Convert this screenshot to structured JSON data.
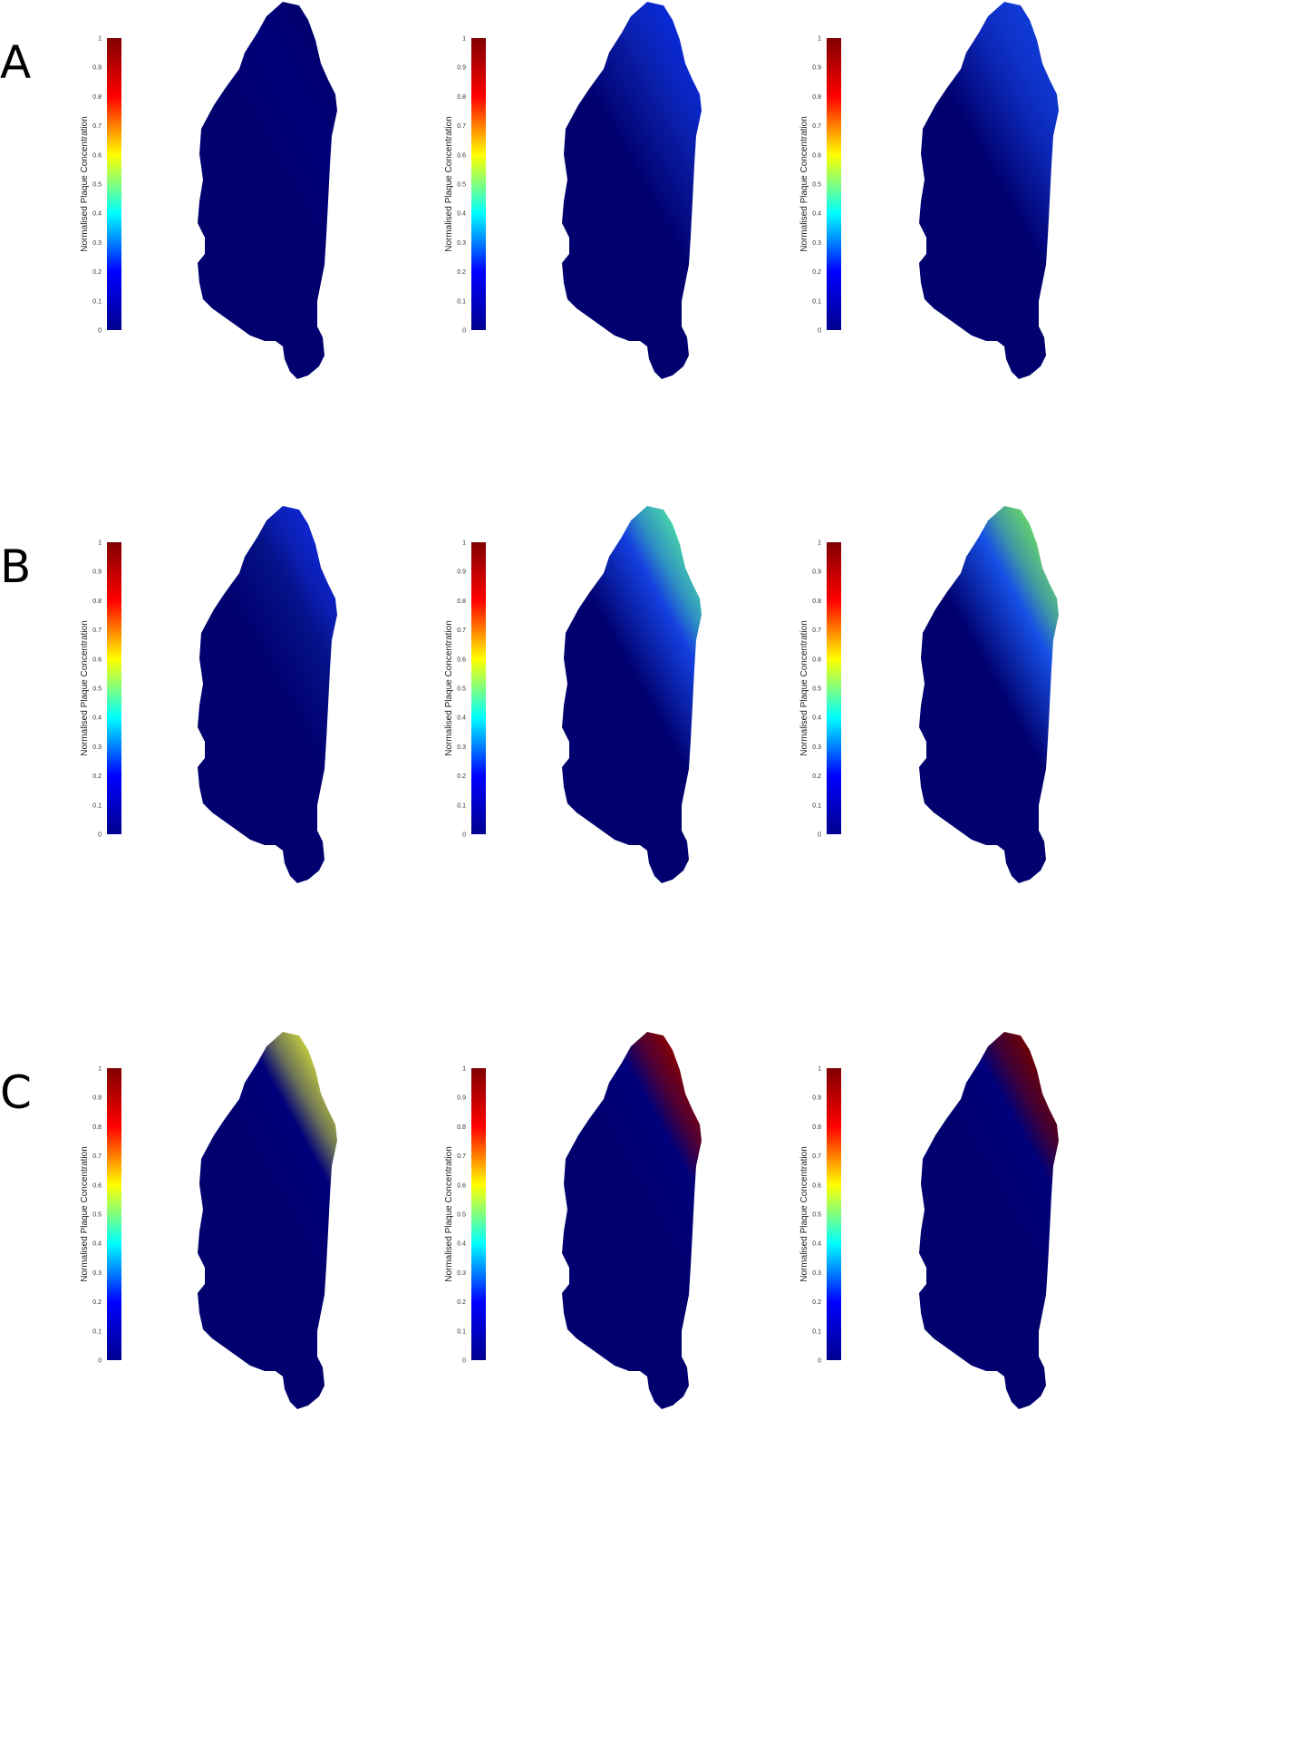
{
  "figure": {
    "rows": [
      {
        "label": "A",
        "panels": [
          {
            "tip": "#00006e",
            "upper": "#00007a"
          },
          {
            "tip": "#0a2ad8",
            "upper": "#0a1ea8"
          },
          {
            "tip": "#103cd8",
            "upper": "#0c28b8"
          }
        ]
      },
      {
        "label": "B",
        "panels": [
          {
            "tip": "#0f28d2",
            "upper": "#05128a"
          },
          {
            "tip": "#48d8a8",
            "upper": "#1440e0"
          },
          {
            "tip": "#68d868",
            "upper": "#1650e6"
          }
        ]
      },
      {
        "label": "C",
        "panels": [
          {
            "tip": "#c8d23a",
            "upper": "#00007a"
          },
          {
            "tip": "#8a0000",
            "upper": "#00007a"
          },
          {
            "tip": "#720000",
            "upper": "#00007a"
          }
        ]
      }
    ],
    "colorbar": {
      "title": "Normalised Plaque Concentration",
      "ticks": [
        "0",
        "0.1",
        "0.2",
        "0.3",
        "0.4",
        "0.5",
        "0.6",
        "0.7",
        "0.8",
        "0.9",
        "1"
      ],
      "stops": [
        "#00008f",
        "#0000ff",
        "#00ffff",
        "#ffff00",
        "#ff0000",
        "#800000"
      ]
    },
    "base_color": "#00006e"
  }
}
